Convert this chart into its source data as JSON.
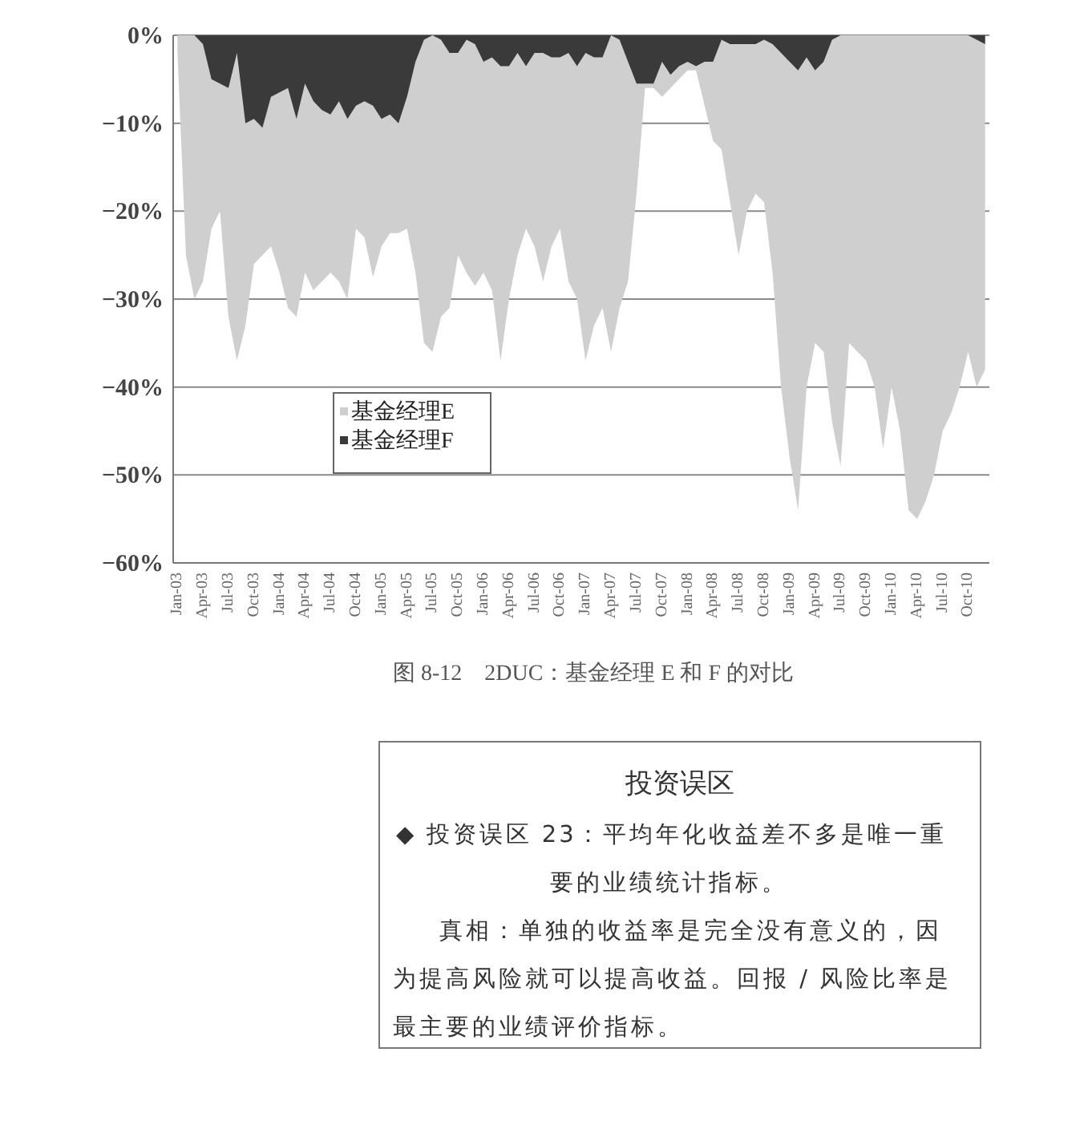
{
  "chart_data": [
    {
      "type": "area",
      "title": "图 8-12　2DUC：基金经理 E 和 F 的对比",
      "categories": [
        "Jan-03",
        null,
        null,
        "Apr-03",
        null,
        null,
        "Jul-03",
        null,
        null,
        "Oct-03",
        null,
        null,
        "Jan-04",
        null,
        null,
        "Apr-04",
        null,
        null,
        "Jul-04",
        null,
        null,
        "Oct-04",
        null,
        null,
        "Jan-05",
        null,
        null,
        "Apr-05",
        null,
        null,
        "Jul-05",
        null,
        null,
        "Oct-05",
        null,
        null,
        "Jan-06",
        null,
        null,
        "Apr-06",
        null,
        null,
        "Jul-06",
        null,
        null,
        "Oct-06",
        null,
        null,
        "Jan-07",
        null,
        null,
        "Apr-07",
        null,
        null,
        "Jul-07",
        null,
        null,
        "Oct-07",
        null,
        null,
        "Jan-08",
        null,
        null,
        "Apr-08",
        null,
        null,
        "Jul-08",
        null,
        null,
        "Oct-08",
        null,
        null,
        "Jan-09",
        null,
        null,
        "Apr-09",
        null,
        null,
        "Jul-09",
        null,
        null,
        "Oct-09",
        null,
        null,
        "Jan-10",
        null,
        null,
        "Apr-10",
        null,
        null,
        "Jul-10",
        null,
        null,
        "Oct-10",
        null,
        null
      ],
      "series": [
        {
          "name": "基金经理E",
          "color": "#cfcfcf",
          "values": [
            -2,
            -25,
            -30,
            -28,
            -22,
            -20,
            -32,
            -37,
            -33,
            -26,
            -25,
            -24,
            -27,
            -31,
            -32,
            -27,
            -29,
            -28,
            -27,
            -28,
            -30,
            -22,
            -23,
            -27.5,
            -24,
            -22.5,
            -22.5,
            -22,
            -27,
            -35,
            -36,
            -32,
            -31,
            -25,
            -27,
            -28.5,
            -27,
            -29,
            -37,
            -30,
            -25,
            -22,
            -24,
            -28,
            -24,
            -22,
            -28,
            -30,
            -37,
            -33,
            -31,
            -36,
            -31,
            -28,
            -18,
            -6,
            -6,
            -7,
            -6,
            -5,
            -4,
            -4,
            -8,
            -12,
            -13,
            -19,
            -25,
            -20,
            -18,
            -19,
            -27,
            -40,
            -48,
            -54,
            -40,
            -35,
            -36,
            -44,
            -49,
            -35,
            -36,
            -37,
            -40,
            -47,
            -40,
            -45,
            -54,
            -55,
            -53,
            -50,
            -45,
            -43,
            -40,
            -36,
            -40,
            -38
          ]
        },
        {
          "name": "基金经理F",
          "color": "#3a3a3a",
          "values": [
            0,
            0,
            0,
            -1,
            -5,
            -5.5,
            -6,
            -2,
            -10,
            -9.5,
            -10.5,
            -7,
            -6.5,
            -6,
            -9.5,
            -5.5,
            -7.5,
            -8.5,
            -9,
            -7.5,
            -9.5,
            -8,
            -7.5,
            -8,
            -9.5,
            -9,
            -10,
            -7,
            -3,
            -0.5,
            0,
            -0.5,
            -2,
            -2,
            -0.5,
            -1,
            -3,
            -2.5,
            -3.5,
            -3.5,
            -2,
            -3.5,
            -2,
            -2,
            -2.5,
            -2.5,
            -2,
            -3.5,
            -2,
            -2.5,
            -2.5,
            0,
            -0.5,
            -3,
            -5.5,
            -5.5,
            -5.5,
            -3,
            -4.5,
            -3.5,
            -3,
            -3.5,
            -3,
            -3,
            -0.5,
            -1,
            -1,
            -1,
            -1,
            -0.5,
            -1,
            -2,
            -3,
            -4,
            -2.5,
            -4,
            -3,
            -0.5,
            0,
            0,
            0,
            0,
            0,
            0,
            0,
            0,
            0,
            0,
            0,
            0,
            0,
            0,
            0,
            0,
            -0.5,
            -1
          ]
        }
      ],
      "ylim": [
        -60,
        0
      ],
      "yticks": [
        {
          "value": 0,
          "label": "0%"
        },
        {
          "value": -10,
          "label": "−10%"
        },
        {
          "value": -20,
          "label": "−20%"
        },
        {
          "value": -30,
          "label": "−30%"
        },
        {
          "value": -40,
          "label": "−40%"
        },
        {
          "value": -50,
          "label": "−50%"
        },
        {
          "value": -60,
          "label": "−60%"
        }
      ],
      "grid": "y",
      "legend": "center left"
    },
    {
      "type": "other",
      "title": "投资误区",
      "annotations": [
        "◆ 投资误区 23：平均年化收益差不多是唯一重要的业绩统计指标。",
        "真相：单独的收益率是完全没有意义的，因为提高风险就可以提高收益。回报 / 风险比率是最主要的业绩评价指标。"
      ]
    }
  ]
}
